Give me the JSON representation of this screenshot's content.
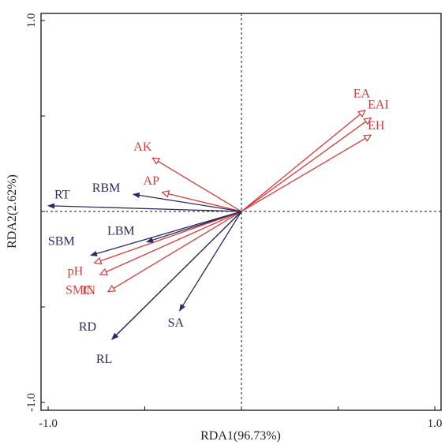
{
  "chart_data": {
    "type": "biplot",
    "title": "",
    "xlabel": "RDA1(96.73%)",
    "ylabel": "RDA2(2.62%)",
    "xlim": [
      -1.0,
      1.0
    ],
    "ylim": [
      -1.0,
      1.0
    ],
    "x_ticks": [
      {
        "value": -1.0,
        "label": "-1.0"
      },
      {
        "value": 1.0,
        "label": "1.0"
      }
    ],
    "y_ticks": [
      {
        "value": 1.0,
        "label": "1.0"
      },
      {
        "value": -1.0,
        "label": "-1.0"
      }
    ],
    "minor_tick_values": [
      -0.5,
      0.0,
      0.5
    ],
    "zero_lines": true,
    "colors": {
      "response": "#d43a3a",
      "explanatory": "#2b2b5e",
      "frame": "#111111"
    },
    "vectors": [
      {
        "name": "EA",
        "group": "response",
        "x": 0.64,
        "y": 0.53
      },
      {
        "name": "EAI",
        "group": "response",
        "x": 0.67,
        "y": 0.49
      },
      {
        "name": "EH",
        "group": "response",
        "x": 0.67,
        "y": 0.4
      },
      {
        "name": "AK",
        "group": "response",
        "x": -0.46,
        "y": 0.28
      },
      {
        "name": "AP",
        "group": "response",
        "x": -0.41,
        "y": 0.1
      },
      {
        "name": "pH",
        "group": "response",
        "x": -0.76,
        "y": -0.27
      },
      {
        "name": "SMC",
        "group": "response",
        "x": -0.69,
        "y": -0.42
      },
      {
        "name": "IN",
        "group": "response",
        "x": -0.73,
        "y": -0.33
      },
      {
        "name": "RT",
        "group": "explanatory",
        "x": -1.0,
        "y": 0.03
      },
      {
        "name": "RBM",
        "group": "explanatory",
        "x": -0.56,
        "y": 0.09
      },
      {
        "name": "LBM",
        "group": "explanatory",
        "x": -0.49,
        "y": -0.16
      },
      {
        "name": "SBM",
        "group": "explanatory",
        "x": -0.78,
        "y": -0.23
      },
      {
        "name": "SA",
        "group": "explanatory",
        "x": -0.32,
        "y": -0.52
      },
      {
        "name": "RD",
        "group": "explanatory",
        "x": -0.67,
        "y": -0.67
      },
      {
        "name": "RL",
        "group": "explanatory",
        "x": -0.67,
        "y": -0.67
      }
    ],
    "label_offsets": {
      "EA": [
        -15,
        -16
      ],
      "EAI": [
        -4,
        -12
      ],
      "EH": [
        -4,
        -7
      ],
      "AK": [
        -24,
        -9
      ],
      "AP": [
        -24,
        -10
      ],
      "pH": [
        -34,
        15
      ],
      "SMC": [
        -54,
        3
      ],
      "IN": [
        -23,
        25
      ],
      "RT": [
        8,
        -9
      ],
      "RBM": [
        -52,
        -3
      ],
      "LBM": [
        -50,
        -9
      ],
      "SBM": [
        -54,
        -13
      ],
      "SA": [
        -15,
        20
      ],
      "RD": [
        -42,
        -11
      ],
      "RL": [
        -20,
        30
      ]
    }
  }
}
